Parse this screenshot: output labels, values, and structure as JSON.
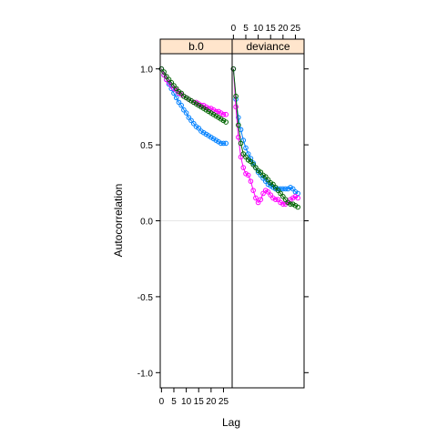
{
  "chart_data": {
    "type": "line",
    "ylabel": "Autocorrelation",
    "xlabel": "Lag",
    "ylim": [
      -1.1,
      1.1
    ],
    "yticks": [
      -1.0,
      -0.5,
      0.0,
      0.5,
      1.0
    ],
    "yticklabels": [
      "-1.0",
      "-0.5",
      "0.0",
      "0.5",
      "1.0"
    ],
    "xlim": [
      -0.5,
      28.5
    ],
    "xticks": [
      0,
      5,
      10,
      15,
      20,
      25
    ],
    "xticklabels": [
      "0",
      "5",
      "10",
      "15",
      "20",
      "25"
    ],
    "reference_line": 0,
    "panels": [
      {
        "strip_label": "b.0",
        "series": [
          {
            "color": "#0080ff",
            "x": [
              0,
              1,
              2,
              3,
              4,
              5,
              6,
              7,
              8,
              9,
              10,
              11,
              12,
              13,
              14,
              15,
              16,
              17,
              18,
              19,
              20,
              21,
              22,
              23,
              24,
              25,
              26
            ],
            "values": [
              1.0,
              0.96,
              0.93,
              0.9,
              0.87,
              0.84,
              0.81,
              0.78,
              0.76,
              0.73,
              0.71,
              0.68,
              0.66,
              0.64,
              0.62,
              0.61,
              0.59,
              0.58,
              0.57,
              0.56,
              0.55,
              0.54,
              0.53,
              0.52,
              0.51,
              0.51,
              0.51
            ]
          },
          {
            "color": "#ff00ff",
            "x": [
              0,
              1,
              2,
              3,
              4,
              5,
              6,
              7,
              8,
              9,
              10,
              11,
              12,
              13,
              14,
              15,
              16,
              17,
              18,
              19,
              20,
              21,
              22,
              23,
              24,
              25,
              26
            ],
            "values": [
              1.0,
              0.96,
              0.93,
              0.91,
              0.89,
              0.87,
              0.86,
              0.84,
              0.83,
              0.82,
              0.81,
              0.8,
              0.79,
              0.78,
              0.78,
              0.77,
              0.76,
              0.76,
              0.75,
              0.74,
              0.74,
              0.73,
              0.72,
              0.72,
              0.71,
              0.7,
              0.7
            ]
          },
          {
            "color": "#006400",
            "x": [
              0,
              1,
              2,
              3,
              4,
              5,
              6,
              7,
              8,
              9,
              10,
              11,
              12,
              13,
              14,
              15,
              16,
              17,
              18,
              19,
              20,
              21,
              22,
              23,
              24,
              25,
              26
            ],
            "values": [
              1.0,
              0.98,
              0.95,
              0.93,
              0.91,
              0.89,
              0.87,
              0.85,
              0.84,
              0.82,
              0.81,
              0.8,
              0.79,
              0.78,
              0.77,
              0.76,
              0.75,
              0.74,
              0.73,
              0.72,
              0.71,
              0.7,
              0.69,
              0.68,
              0.67,
              0.66,
              0.65
            ]
          }
        ]
      },
      {
        "strip_label": "deviance",
        "series": [
          {
            "color": "#0080ff",
            "x": [
              0,
              1,
              2,
              3,
              4,
              5,
              6,
              7,
              8,
              9,
              10,
              11,
              12,
              13,
              14,
              15,
              16,
              17,
              18,
              19,
              20,
              21,
              22,
              23,
              24,
              25,
              26
            ],
            "values": [
              1.0,
              0.8,
              0.68,
              0.6,
              0.53,
              0.48,
              0.44,
              0.41,
              0.38,
              0.35,
              0.32,
              0.3,
              0.28,
              0.26,
              0.24,
              0.23,
              0.22,
              0.21,
              0.21,
              0.21,
              0.21,
              0.21,
              0.21,
              0.22,
              0.21,
              0.19,
              0.18
            ]
          },
          {
            "color": "#ff00ff",
            "x": [
              0,
              1,
              2,
              3,
              4,
              5,
              6,
              7,
              8,
              9,
              10,
              11,
              12,
              13,
              14,
              15,
              16,
              17,
              18,
              19,
              20,
              21,
              22,
              23,
              24,
              25,
              26
            ],
            "values": [
              1.0,
              0.75,
              0.55,
              0.42,
              0.35,
              0.31,
              0.3,
              0.26,
              0.2,
              0.15,
              0.12,
              0.14,
              0.18,
              0.2,
              0.19,
              0.17,
              0.15,
              0.14,
              0.14,
              0.12,
              0.11,
              0.11,
              0.12,
              0.14,
              0.15,
              0.16,
              0.15
            ]
          },
          {
            "color": "#006400",
            "x": [
              0,
              1,
              2,
              3,
              4,
              5,
              6,
              7,
              8,
              9,
              10,
              11,
              12,
              13,
              14,
              15,
              16,
              17,
              18,
              19,
              20,
              21,
              22,
              23,
              24,
              25,
              26
            ],
            "values": [
              1.0,
              0.82,
              0.63,
              0.51,
              0.44,
              0.42,
              0.4,
              0.39,
              0.37,
              0.35,
              0.33,
              0.32,
              0.3,
              0.29,
              0.27,
              0.25,
              0.24,
              0.22,
              0.2,
              0.18,
              0.16,
              0.14,
              0.12,
              0.11,
              0.11,
              0.1,
              0.09
            ]
          }
        ]
      }
    ]
  }
}
